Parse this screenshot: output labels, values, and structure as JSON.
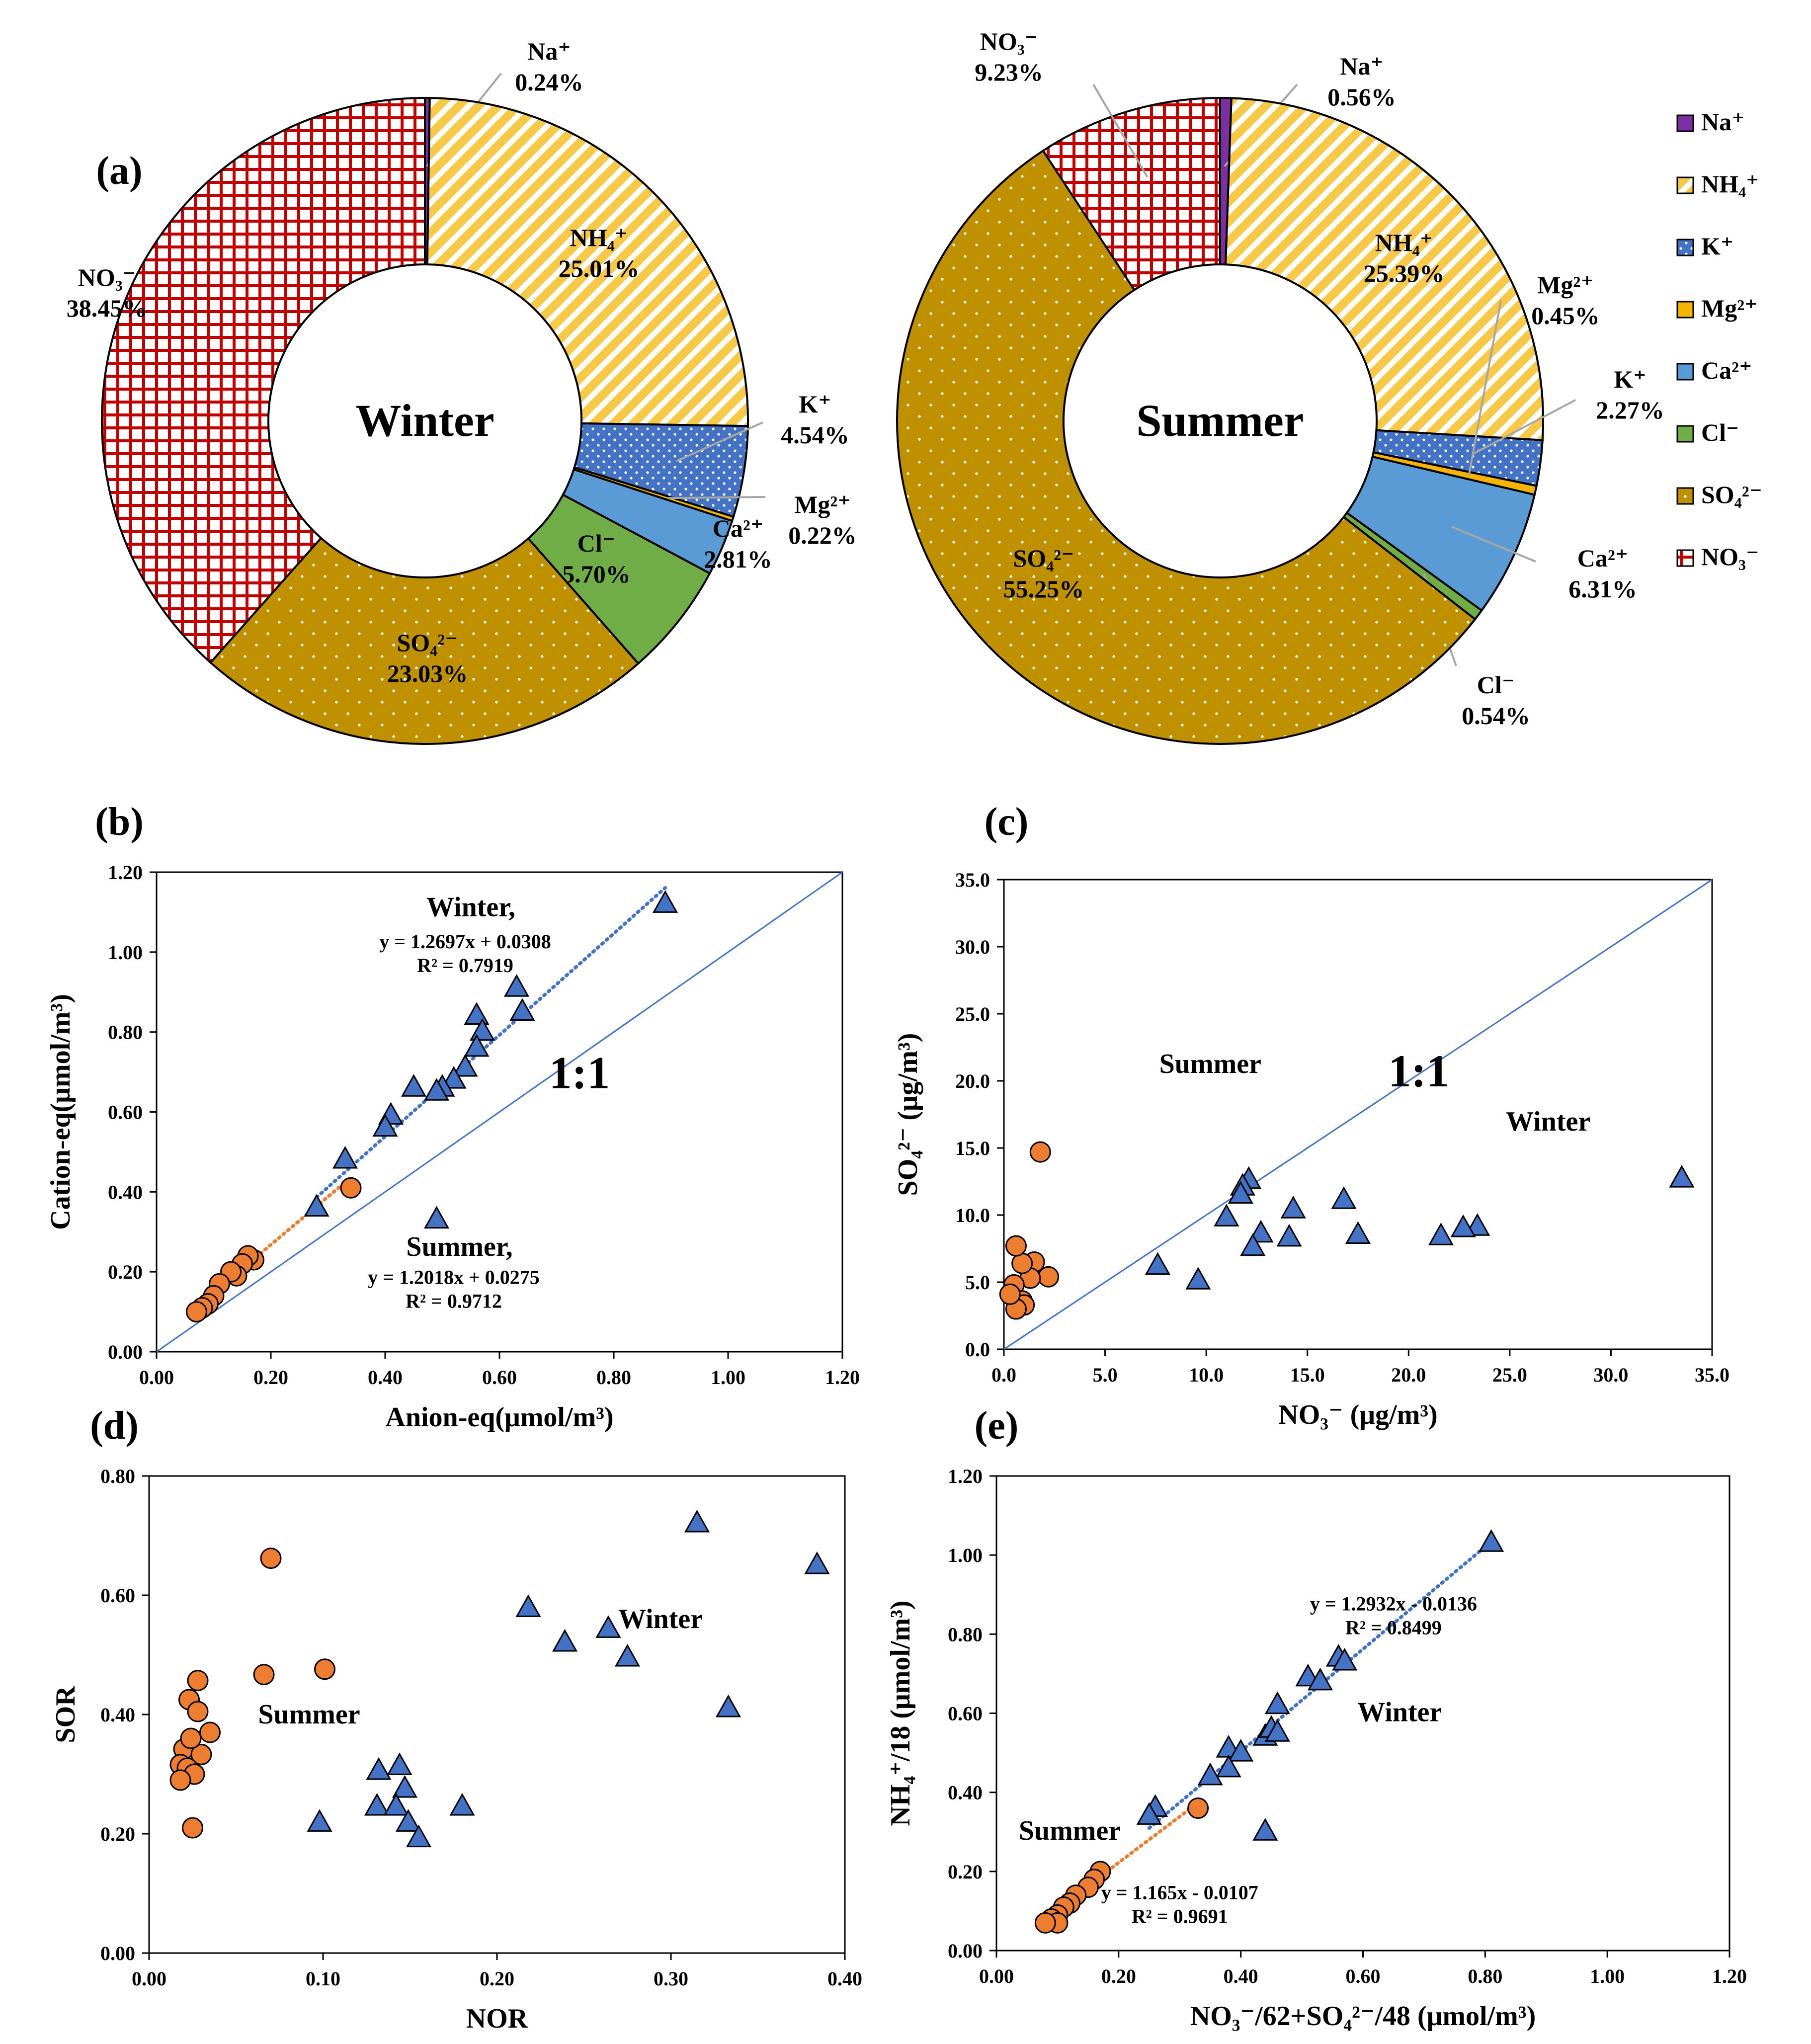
{
  "colors": {
    "na": "#7B2FA0",
    "nh4": "#F7C948",
    "k": "#4472C4",
    "mg": "#F5B400",
    "ca": "#5B9BD5",
    "cl": "#70AD47",
    "so4": "#BF9000",
    "no3": "#C00000",
    "winter_marker": "#4472C4",
    "summer_marker": "#ED7D31",
    "line": "#4472C4"
  },
  "chart_data": [
    {
      "id": "a-winter",
      "type": "pie",
      "panel_label": "(a)",
      "center_label": "Winter",
      "slices": [
        {
          "key": "na",
          "name": "Na⁺",
          "pct_label": "0.24%",
          "value": 0.24
        },
        {
          "key": "nh4",
          "name": "NH₄⁺",
          "pct_label": "25.01%",
          "value": 25.01
        },
        {
          "key": "k",
          "name": "K⁺",
          "pct_label": "4.54%",
          "value": 4.54
        },
        {
          "key": "mg",
          "name": "Mg²⁺",
          "pct_label": "0.22%",
          "value": 0.22
        },
        {
          "key": "ca",
          "name": "Ca²⁺",
          "pct_label": "2.81%",
          "value": 2.81
        },
        {
          "key": "cl",
          "name": "Cl⁻",
          "pct_label": "5.70%",
          "value": 5.7
        },
        {
          "key": "so4",
          "name": "SO₄²⁻",
          "pct_label": "23.03%",
          "value": 23.03
        },
        {
          "key": "no3",
          "name": "NO₃⁻",
          "pct_label": "38.45%",
          "value": 38.45
        }
      ]
    },
    {
      "id": "a-summer",
      "type": "pie",
      "center_label": "Summer",
      "slices": [
        {
          "key": "na",
          "name": "Na⁺",
          "pct_label": "0.56%",
          "value": 0.56
        },
        {
          "key": "nh4",
          "name": "NH₄⁺",
          "pct_label": "25.39%",
          "value": 25.39
        },
        {
          "key": "k",
          "name": "K⁺",
          "pct_label": "2.27%",
          "value": 2.27
        },
        {
          "key": "mg",
          "name": "Mg²⁺",
          "pct_label": "0.45%",
          "value": 0.45
        },
        {
          "key": "ca",
          "name": "Ca²⁺",
          "pct_label": "6.31%",
          "value": 6.31
        },
        {
          "key": "cl",
          "name": "Cl⁻",
          "pct_label": "0.54%",
          "value": 0.54
        },
        {
          "key": "so4",
          "name": "SO₄²⁻",
          "pct_label": "55.25%",
          "value": 55.25
        },
        {
          "key": "no3",
          "name": "NO₃⁻",
          "pct_label": "9.23%",
          "value": 9.23
        }
      ],
      "legend": [
        "Na⁺",
        "NH₄⁺",
        "K⁺",
        "Mg²⁺",
        "Ca²⁺",
        "Cl⁻",
        "SO₄²⁻",
        "NO₃⁻"
      ]
    },
    {
      "id": "b",
      "type": "scatter",
      "panel_label": "(b)",
      "xlabel": "Anion-eq(μmol/m³)",
      "ylabel": "Cation-eq(μmol/m³)",
      "xlim": [
        0,
        1.2
      ],
      "ylim": [
        0,
        1.2
      ],
      "xstep": 0.2,
      "ystep": 0.2,
      "decimals": 2,
      "one_to_one": "1:1",
      "annotations": [
        {
          "text": "Winter,",
          "size": "big",
          "x": 0.55,
          "y": 1.09
        },
        {
          "text": "y = 1.2697x + 0.0308",
          "size": "small",
          "x": 0.54,
          "y": 1.01
        },
        {
          "text": "R² = 0.7919",
          "size": "small",
          "x": 0.54,
          "y": 0.95
        },
        {
          "text": "1:1",
          "size": "huge",
          "x": 0.74,
          "y": 0.66
        },
        {
          "text": "Summer,",
          "size": "big",
          "x": 0.53,
          "y": 0.24
        },
        {
          "text": "y = 1.2018x + 0.0275",
          "size": "small",
          "x": 0.52,
          "y": 0.17
        },
        {
          "text": "R² = 0.9712",
          "size": "small",
          "x": 0.52,
          "y": 0.11
        }
      ],
      "trend": [
        {
          "series": "Winter",
          "slope": 1.2697,
          "intercept": 0.0308,
          "x0": 0.28,
          "x1": 0.89
        },
        {
          "series": "Summer",
          "slope": 1.2018,
          "intercept": 0.0275,
          "x0": 0.07,
          "x1": 0.33
        }
      ],
      "series": [
        {
          "name": "Winter",
          "marker": "triangle",
          "points": [
            [
              0.89,
              1.12
            ],
            [
              0.63,
              0.91
            ],
            [
              0.64,
              0.85
            ],
            [
              0.56,
              0.84
            ],
            [
              0.57,
              0.8
            ],
            [
              0.56,
              0.76
            ],
            [
              0.54,
              0.71
            ],
            [
              0.52,
              0.68
            ],
            [
              0.5,
              0.66
            ],
            [
              0.49,
              0.65
            ],
            [
              0.45,
              0.66
            ],
            [
              0.41,
              0.59
            ],
            [
              0.4,
              0.56
            ],
            [
              0.33,
              0.48
            ],
            [
              0.28,
              0.36
            ],
            [
              0.49,
              0.33
            ]
          ]
        },
        {
          "name": "Summer",
          "marker": "circle",
          "points": [
            [
              0.34,
              0.41
            ],
            [
              0.17,
              0.23
            ],
            [
              0.16,
              0.24
            ],
            [
              0.15,
              0.22
            ],
            [
              0.14,
              0.19
            ],
            [
              0.13,
              0.2
            ],
            [
              0.11,
              0.17
            ],
            [
              0.1,
              0.14
            ],
            [
              0.09,
              0.12
            ],
            [
              0.08,
              0.11
            ],
            [
              0.07,
              0.1
            ]
          ]
        }
      ]
    },
    {
      "id": "c",
      "type": "scatter",
      "panel_label": "(c)",
      "xlabel": "NO₃⁻ (μg/m³)",
      "ylabel": "SO₄²⁻ (μg/m³)",
      "xlim": [
        0,
        35
      ],
      "ylim": [
        0,
        35
      ],
      "xstep": 5,
      "ystep": 5,
      "decimals": 1,
      "one_to_one": "1:1",
      "annotations": [
        {
          "text": "Summer",
          "size": "big",
          "x": 10.2,
          "y": 20.6
        },
        {
          "text": "1:1",
          "size": "huge",
          "x": 20.5,
          "y": 19.6
        },
        {
          "text": "Winter",
          "size": "big",
          "x": 26.9,
          "y": 16.3
        }
      ],
      "series": [
        {
          "name": "Winter",
          "marker": "triangle",
          "points": [
            [
              33.5,
              12.7
            ],
            [
              23.4,
              9.1
            ],
            [
              22.7,
              9.0
            ],
            [
              21.6,
              8.4
            ],
            [
              17.5,
              8.5
            ],
            [
              16.8,
              11.1
            ],
            [
              14.3,
              10.4
            ],
            [
              14.1,
              8.3
            ],
            [
              12.7,
              8.6
            ],
            [
              12.3,
              7.6
            ],
            [
              12.1,
              12.6
            ],
            [
              11.8,
              12.1
            ],
            [
              11.7,
              11.5
            ],
            [
              11.0,
              9.8
            ],
            [
              9.6,
              5.1
            ],
            [
              7.6,
              6.2
            ]
          ]
        },
        {
          "name": "Summer",
          "marker": "circle",
          "points": [
            [
              1.8,
              14.7
            ],
            [
              2.2,
              5.4
            ],
            [
              1.5,
              6.5
            ],
            [
              1.3,
              5.3
            ],
            [
              0.9,
              6.4
            ],
            [
              0.6,
              7.7
            ],
            [
              0.5,
              4.8
            ],
            [
              0.9,
              3.6
            ],
            [
              1.0,
              3.3
            ],
            [
              0.6,
              3.0
            ],
            [
              0.3,
              4.1
            ]
          ]
        }
      ]
    },
    {
      "id": "d",
      "type": "scatter",
      "panel_label": "(d)",
      "xlabel": "NOR",
      "ylabel": "SOR",
      "xlim": [
        0,
        0.4
      ],
      "ylim": [
        0,
        0.8
      ],
      "xstep": 0.1,
      "ystep": 0.2,
      "decimals": 2,
      "xtick_labels": [
        "0.00",
        "0.10",
        "0.20",
        "0.30",
        "0.40"
      ],
      "annotations": [
        {
          "text": "Winter",
          "size": "big",
          "x": 0.294,
          "y": 0.545
        },
        {
          "text": "Summer",
          "size": "big",
          "x": 0.092,
          "y": 0.385
        }
      ],
      "series": [
        {
          "name": "Winter",
          "marker": "triangle",
          "points": [
            [
              0.315,
              0.72
            ],
            [
              0.384,
              0.65
            ],
            [
              0.218,
              0.578
            ],
            [
              0.264,
              0.543
            ],
            [
              0.239,
              0.52
            ],
            [
              0.275,
              0.495
            ],
            [
              0.333,
              0.41
            ],
            [
              0.144,
              0.313
            ],
            [
              0.132,
              0.305
            ],
            [
              0.147,
              0.275
            ],
            [
              0.131,
              0.245
            ],
            [
              0.142,
              0.245
            ],
            [
              0.18,
              0.245
            ],
            [
              0.098,
              0.218
            ],
            [
              0.149,
              0.218
            ],
            [
              0.155,
              0.192
            ]
          ]
        },
        {
          "name": "Summer",
          "marker": "circle",
          "points": [
            [
              0.07,
              0.662
            ],
            [
              0.101,
              0.476
            ],
            [
              0.066,
              0.467
            ],
            [
              0.028,
              0.457
            ],
            [
              0.023,
              0.425
            ],
            [
              0.028,
              0.405
            ],
            [
              0.035,
              0.37
            ],
            [
              0.02,
              0.342
            ],
            [
              0.03,
              0.333
            ],
            [
              0.024,
              0.36
            ],
            [
              0.018,
              0.316
            ],
            [
              0.022,
              0.31
            ],
            [
              0.026,
              0.3
            ],
            [
              0.018,
              0.29
            ],
            [
              0.025,
              0.21
            ]
          ]
        }
      ]
    },
    {
      "id": "e",
      "type": "scatter",
      "panel_label": "(e)",
      "xlabel": "NO₃⁻/62+SO₄²⁻/48 (μmol/m³)",
      "ylabel": "NH₄⁺/18 (μmol/m³)",
      "xlim": [
        0,
        1.2
      ],
      "ylim": [
        0,
        1.2
      ],
      "xstep": 0.2,
      "ystep": 0.2,
      "decimals": 2,
      "annotations": [
        {
          "text": "y = 1.2932x - 0.0136",
          "size": "small",
          "x": 0.65,
          "y": 0.86
        },
        {
          "text": "R² = 0.8499",
          "size": "small",
          "x": 0.65,
          "y": 0.8
        },
        {
          "text": "Winter",
          "size": "big",
          "x": 0.66,
          "y": 0.58
        },
        {
          "text": "Summer",
          "size": "big",
          "x": 0.12,
          "y": 0.28
        },
        {
          "text": "y = 1.165x - 0.0107",
          "size": "small",
          "x": 0.3,
          "y": 0.13
        },
        {
          "text": "R² = 0.9691",
          "size": "small",
          "x": 0.3,
          "y": 0.07
        }
      ],
      "trend": [
        {
          "series": "Winter",
          "slope": 1.2932,
          "intercept": -0.0136,
          "x0": 0.25,
          "x1": 0.81
        },
        {
          "series": "Summer",
          "slope": 1.165,
          "intercept": -0.0107,
          "x0": 0.08,
          "x1": 0.33
        }
      ],
      "series": [
        {
          "name": "Winter",
          "marker": "triangle",
          "points": [
            [
              0.81,
              1.03
            ],
            [
              0.56,
              0.74
            ],
            [
              0.57,
              0.73
            ],
            [
              0.51,
              0.69
            ],
            [
              0.53,
              0.68
            ],
            [
              0.46,
              0.62
            ],
            [
              0.44,
              0.54
            ],
            [
              0.45,
              0.56
            ],
            [
              0.46,
              0.55
            ],
            [
              0.38,
              0.51
            ],
            [
              0.4,
              0.5
            ],
            [
              0.38,
              0.46
            ],
            [
              0.35,
              0.44
            ],
            [
              0.26,
              0.36
            ],
            [
              0.25,
              0.34
            ],
            [
              0.44,
              0.3
            ]
          ]
        },
        {
          "name": "Summer",
          "marker": "circle",
          "points": [
            [
              0.33,
              0.36
            ],
            [
              0.17,
              0.2
            ],
            [
              0.16,
              0.18
            ],
            [
              0.15,
              0.16
            ],
            [
              0.13,
              0.14
            ],
            [
              0.12,
              0.12
            ],
            [
              0.11,
              0.11
            ],
            [
              0.1,
              0.09
            ],
            [
              0.09,
              0.08
            ],
            [
              0.1,
              0.07
            ],
            [
              0.08,
              0.07
            ]
          ]
        }
      ]
    }
  ]
}
